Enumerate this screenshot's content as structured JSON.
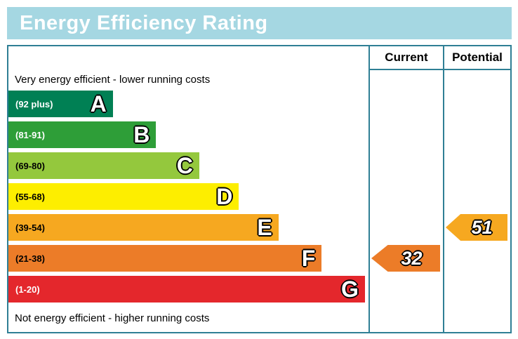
{
  "title": "Energy Efficiency Rating",
  "table": {
    "current_header": "Current",
    "potential_header": "Potential"
  },
  "notes": {
    "top": "Very energy efficient - lower running costs",
    "bottom": "Not energy efficient - higher running costs"
  },
  "colors": {
    "banner_bg": "#a5d7e2",
    "banner_text": "#ffffff",
    "border": "#2f7f95"
  },
  "chart_data": {
    "type": "bar",
    "title": "Energy Efficiency Rating",
    "categories": [
      "A (92 plus)",
      "B (81-91)",
      "C (69-80)",
      "D (55-68)",
      "E (39-54)",
      "F (21-38)",
      "G (1-20)"
    ],
    "bands": [
      {
        "letter": "A",
        "range_label": "(92 plus)",
        "color": "#008054",
        "label_color": "#ffffff",
        "width_pct": 29
      },
      {
        "letter": "B",
        "range_label": "(81-91)",
        "color": "#2e9e38",
        "label_color": "#ffffff",
        "width_pct": 41
      },
      {
        "letter": "C",
        "range_label": "(69-80)",
        "color": "#94c83d",
        "label_color": "#000000",
        "width_pct": 53
      },
      {
        "letter": "D",
        "range_label": "(55-68)",
        "color": "#fdee00",
        "label_color": "#000000",
        "width_pct": 64
      },
      {
        "letter": "E",
        "range_label": "(39-54)",
        "color": "#f6a820",
        "label_color": "#000000",
        "width_pct": 75
      },
      {
        "letter": "F",
        "range_label": "(21-38)",
        "color": "#ec7c28",
        "label_color": "#000000",
        "width_pct": 87
      },
      {
        "letter": "G",
        "range_label": "(1-20)",
        "color": "#e4272c",
        "label_color": "#ffffff",
        "width_pct": 99
      }
    ],
    "current": {
      "label": "Current",
      "value": 32,
      "band_letter": "F",
      "color": "#ec7c28"
    },
    "potential": {
      "label": "Potential",
      "value": 51,
      "band_letter": "E",
      "color": "#f6a820"
    }
  }
}
